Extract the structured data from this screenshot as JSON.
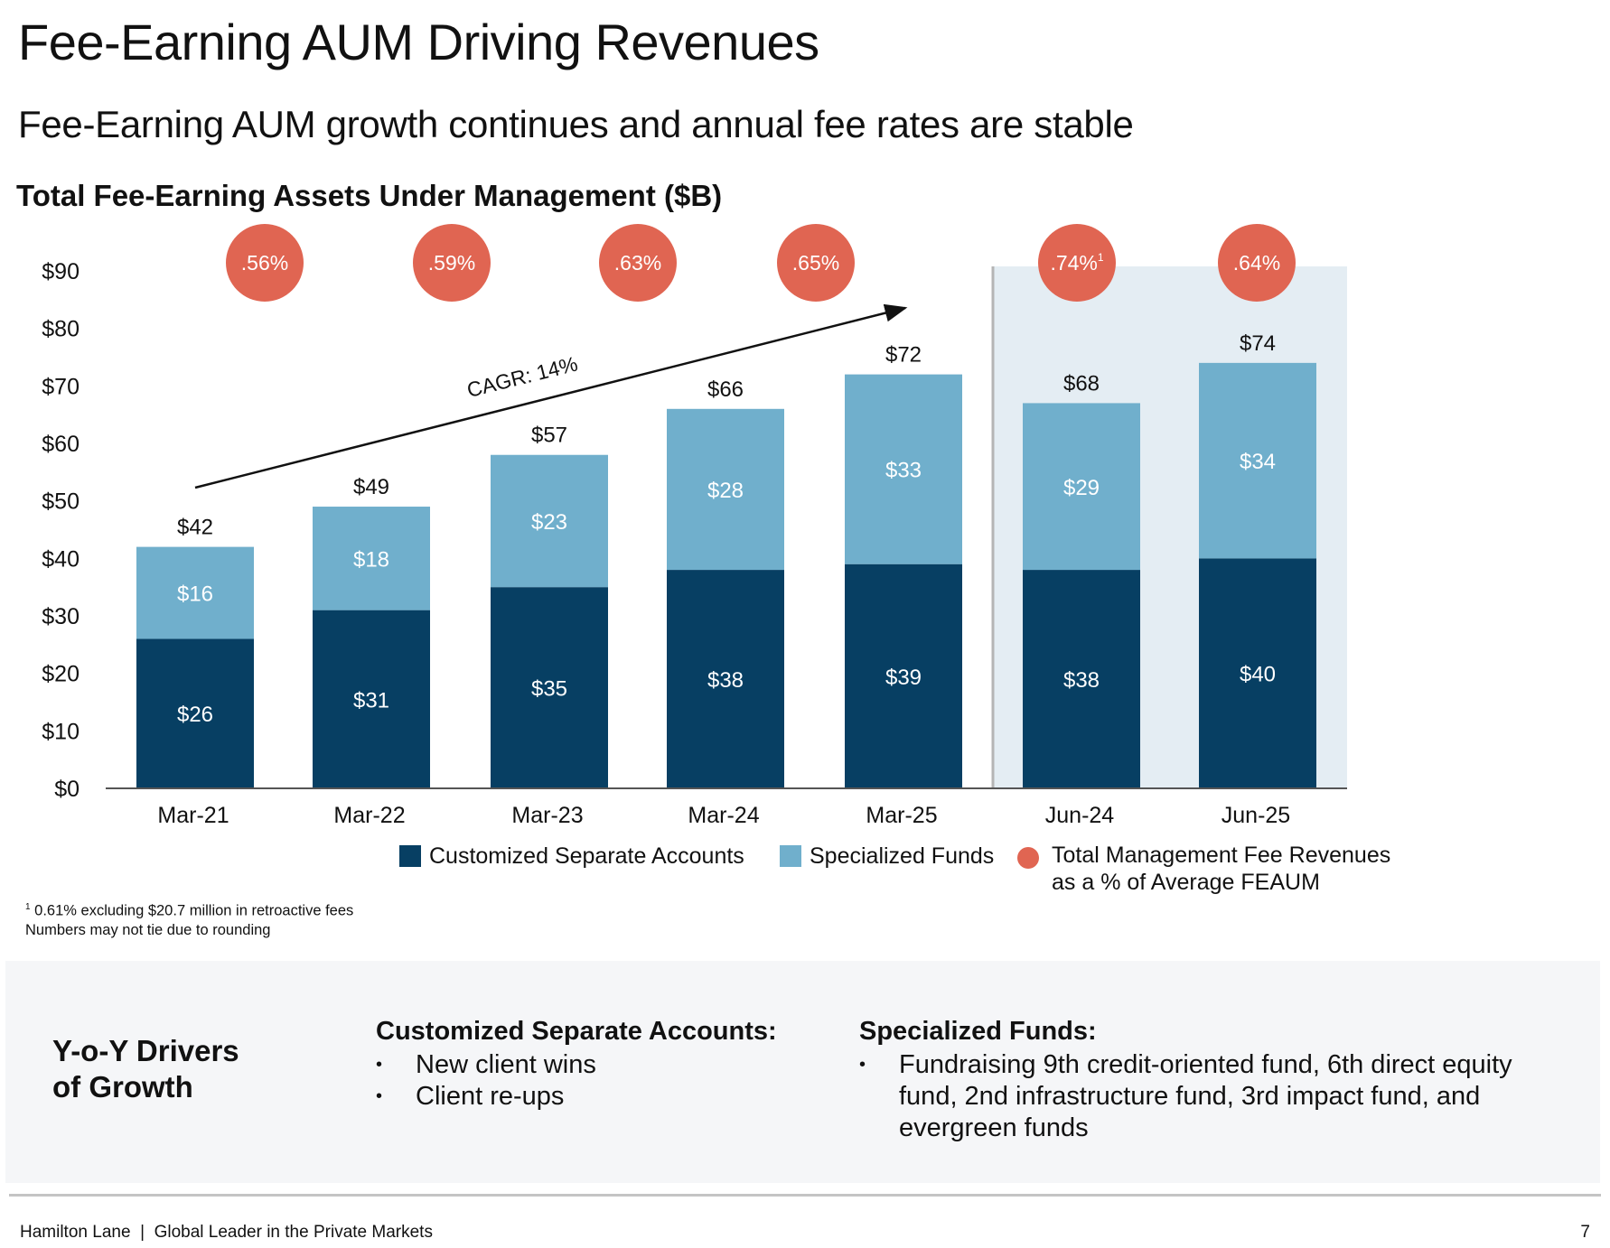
{
  "header": {
    "title": "Fee-Earning AUM Driving Revenues",
    "subtitle": "Fee-Earning AUM growth continues and annual fee rates are stable"
  },
  "chart_data": {
    "type": "bar",
    "stacked": true,
    "title": "Total Fee-Earning Assets Under Management ($B)",
    "categories": [
      "Mar-21",
      "Mar-22",
      "Mar-23",
      "Mar-24",
      "Mar-25",
      "Jun-24",
      "Jun-25"
    ],
    "series": [
      {
        "name": "Customized Separate Accounts",
        "color": "#073f63",
        "values": [
          26,
          31,
          35,
          38,
          39,
          38,
          40
        ],
        "labels": [
          "$26",
          "$31",
          "$35",
          "$38",
          "$39",
          "$38",
          "$40"
        ]
      },
      {
        "name": "Specialized Funds",
        "color": "#70afcc",
        "values": [
          16,
          18,
          23,
          28,
          33,
          29,
          34
        ],
        "labels": [
          "$16",
          "$18",
          "$23",
          "$28",
          "$33",
          "$29",
          "$34"
        ]
      }
    ],
    "totals": [
      42,
      49,
      57,
      66,
      72,
      68,
      74
    ],
    "total_labels": [
      "$42",
      "$49",
      "$57",
      "$66",
      "$72",
      "$68",
      "$74"
    ],
    "fee_rate": {
      "name": "Total Management Fee Revenues as a % of Average FEAUM",
      "name_line1": "Total Management Fee Revenues",
      "name_line2": "as a % of Average FEAUM",
      "color": "#e06552",
      "labels": [
        ".56%",
        ".59%",
        ".63%",
        ".65%",
        ".74%",
        ".64%"
      ],
      "label_superscripts": [
        "",
        "",
        "",
        "",
        "1",
        ""
      ],
      "categories": [
        "Mar-21",
        "Mar-22",
        "Mar-23",
        "Mar-24",
        "Jun-24",
        "Jun-25"
      ]
    },
    "ylim": [
      0,
      90
    ],
    "yticks": [
      0,
      10,
      20,
      30,
      40,
      50,
      60,
      70,
      80,
      90
    ],
    "ytick_labels": [
      "$0",
      "$10",
      "$20",
      "$30",
      "$40",
      "$50",
      "$60",
      "$70",
      "$80",
      "$90"
    ],
    "highlighted_categories": [
      "Jun-24",
      "Jun-25"
    ],
    "annotation": "CAGR: 14%",
    "grid": false,
    "legend_position": "bottom"
  },
  "footnotes": {
    "marker": "1",
    "note1": "0.61% excluding $20.7 million in retroactive fees",
    "note2": "Numbers may not tie due to rounding"
  },
  "drivers": {
    "title_line1": "Y-o-Y Drivers",
    "title_line2": "of Growth",
    "csa_heading": "Customized Separate Accounts:",
    "csa_items": [
      "New client wins",
      "Client re-ups"
    ],
    "sf_heading": "Specialized Funds:",
    "sf_items": [
      "Fundraising 9th credit-oriented fund, 6th direct equity fund, 2nd infrastructure fund, 3rd impact fund, and evergreen funds"
    ]
  },
  "footer": {
    "text": "Hamilton Lane  |  Global Leader in the Private Markets",
    "page": "7"
  }
}
